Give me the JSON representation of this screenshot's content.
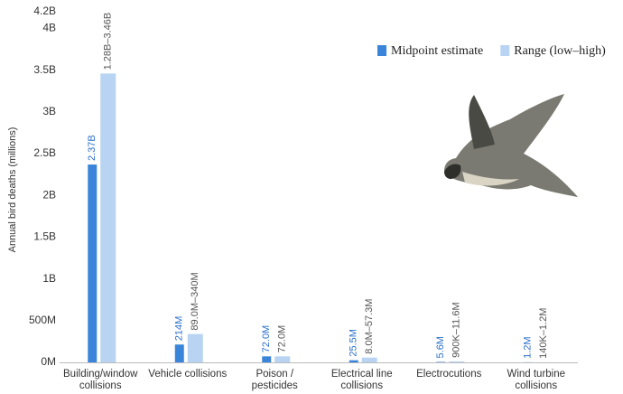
{
  "chart_data": {
    "type": "bar",
    "y_label": "Annual bird deaths (millions)",
    "categories": [
      "Building/window collisions",
      "Vehicle collisions",
      "Poison / pesticides",
      "Electrical line collisions",
      "Electrocutions",
      "Wind turbine collisions"
    ],
    "series": [
      {
        "name": "Midpoint estimate",
        "color": "#3a85d9",
        "values": [
          2370,
          214,
          72,
          25.5,
          5.6,
          1.2
        ],
        "value_labels": [
          "2.37B",
          "214M",
          "72.0M",
          "25.5M",
          "5.6M",
          "1.2M"
        ]
      },
      {
        "name": "Range (low–high)",
        "color": "#b8d4f2",
        "values": [
          3460,
          340,
          72,
          57.3,
          11.6,
          1.2
        ],
        "value_labels": [
          "1.28B–3.46B",
          "89.0M–340M",
          "72.0M",
          "8.0M–57.3M",
          "900K–11.6M",
          "140K–1.2M"
        ]
      }
    ],
    "ylim": [
      0,
      4200
    ],
    "yticks": [
      {
        "value": 0,
        "label": "0M"
      },
      {
        "value": 500,
        "label": "500M"
      },
      {
        "value": 1000,
        "label": "1B"
      },
      {
        "value": 1500,
        "label": "1.5B"
      },
      {
        "value": 2000,
        "label": "2B"
      },
      {
        "value": 2500,
        "label": "2.5B"
      },
      {
        "value": 3000,
        "label": "3B"
      },
      {
        "value": 3500,
        "label": "3.5B"
      },
      {
        "value": 4000,
        "label": "4B"
      },
      {
        "value": 4200,
        "label": "4.2B"
      }
    ],
    "grid": false
  }
}
